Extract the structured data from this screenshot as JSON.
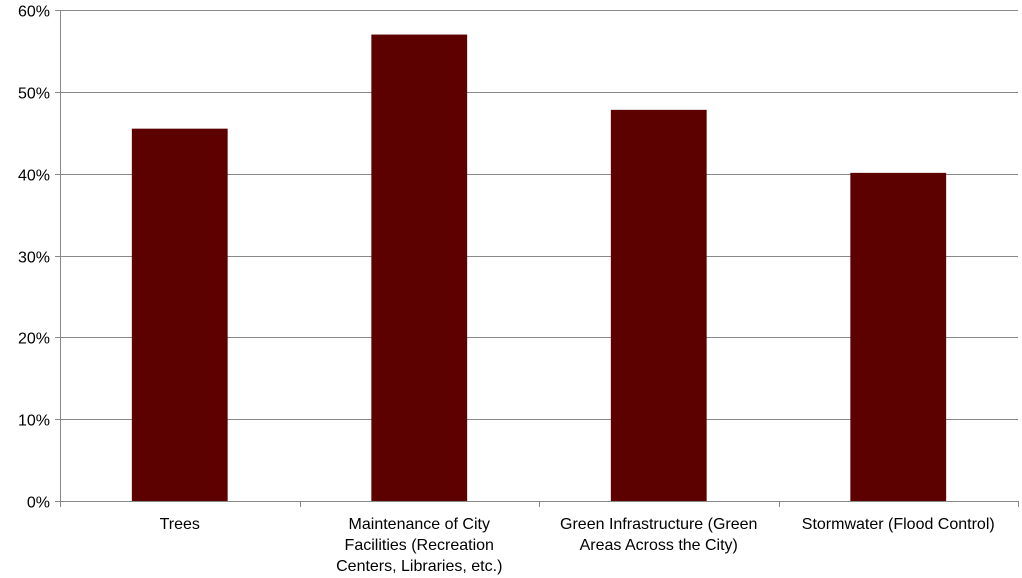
{
  "chart_data": {
    "type": "bar",
    "categories": [
      [
        "Trees"
      ],
      [
        "Maintenance of City",
        "Facilities (Recreation",
        "Centers, Libraries, etc.)"
      ],
      [
        "Green Infrastructure (Green",
        "Areas Across the City)"
      ],
      [
        "Stormwater (Flood Control)"
      ]
    ],
    "values": [
      45.5,
      57.0,
      47.8,
      40.1
    ],
    "ylim": [
      0,
      60
    ],
    "yticks": [
      0,
      10,
      20,
      30,
      40,
      50,
      60
    ],
    "ytick_labels": [
      "0%",
      "10%",
      "20%",
      "30%",
      "40%",
      "50%",
      "60%"
    ],
    "grid": true,
    "bar_color": "#5c0000",
    "grid_color": "#888888",
    "title": "",
    "xlabel": "",
    "ylabel": ""
  }
}
